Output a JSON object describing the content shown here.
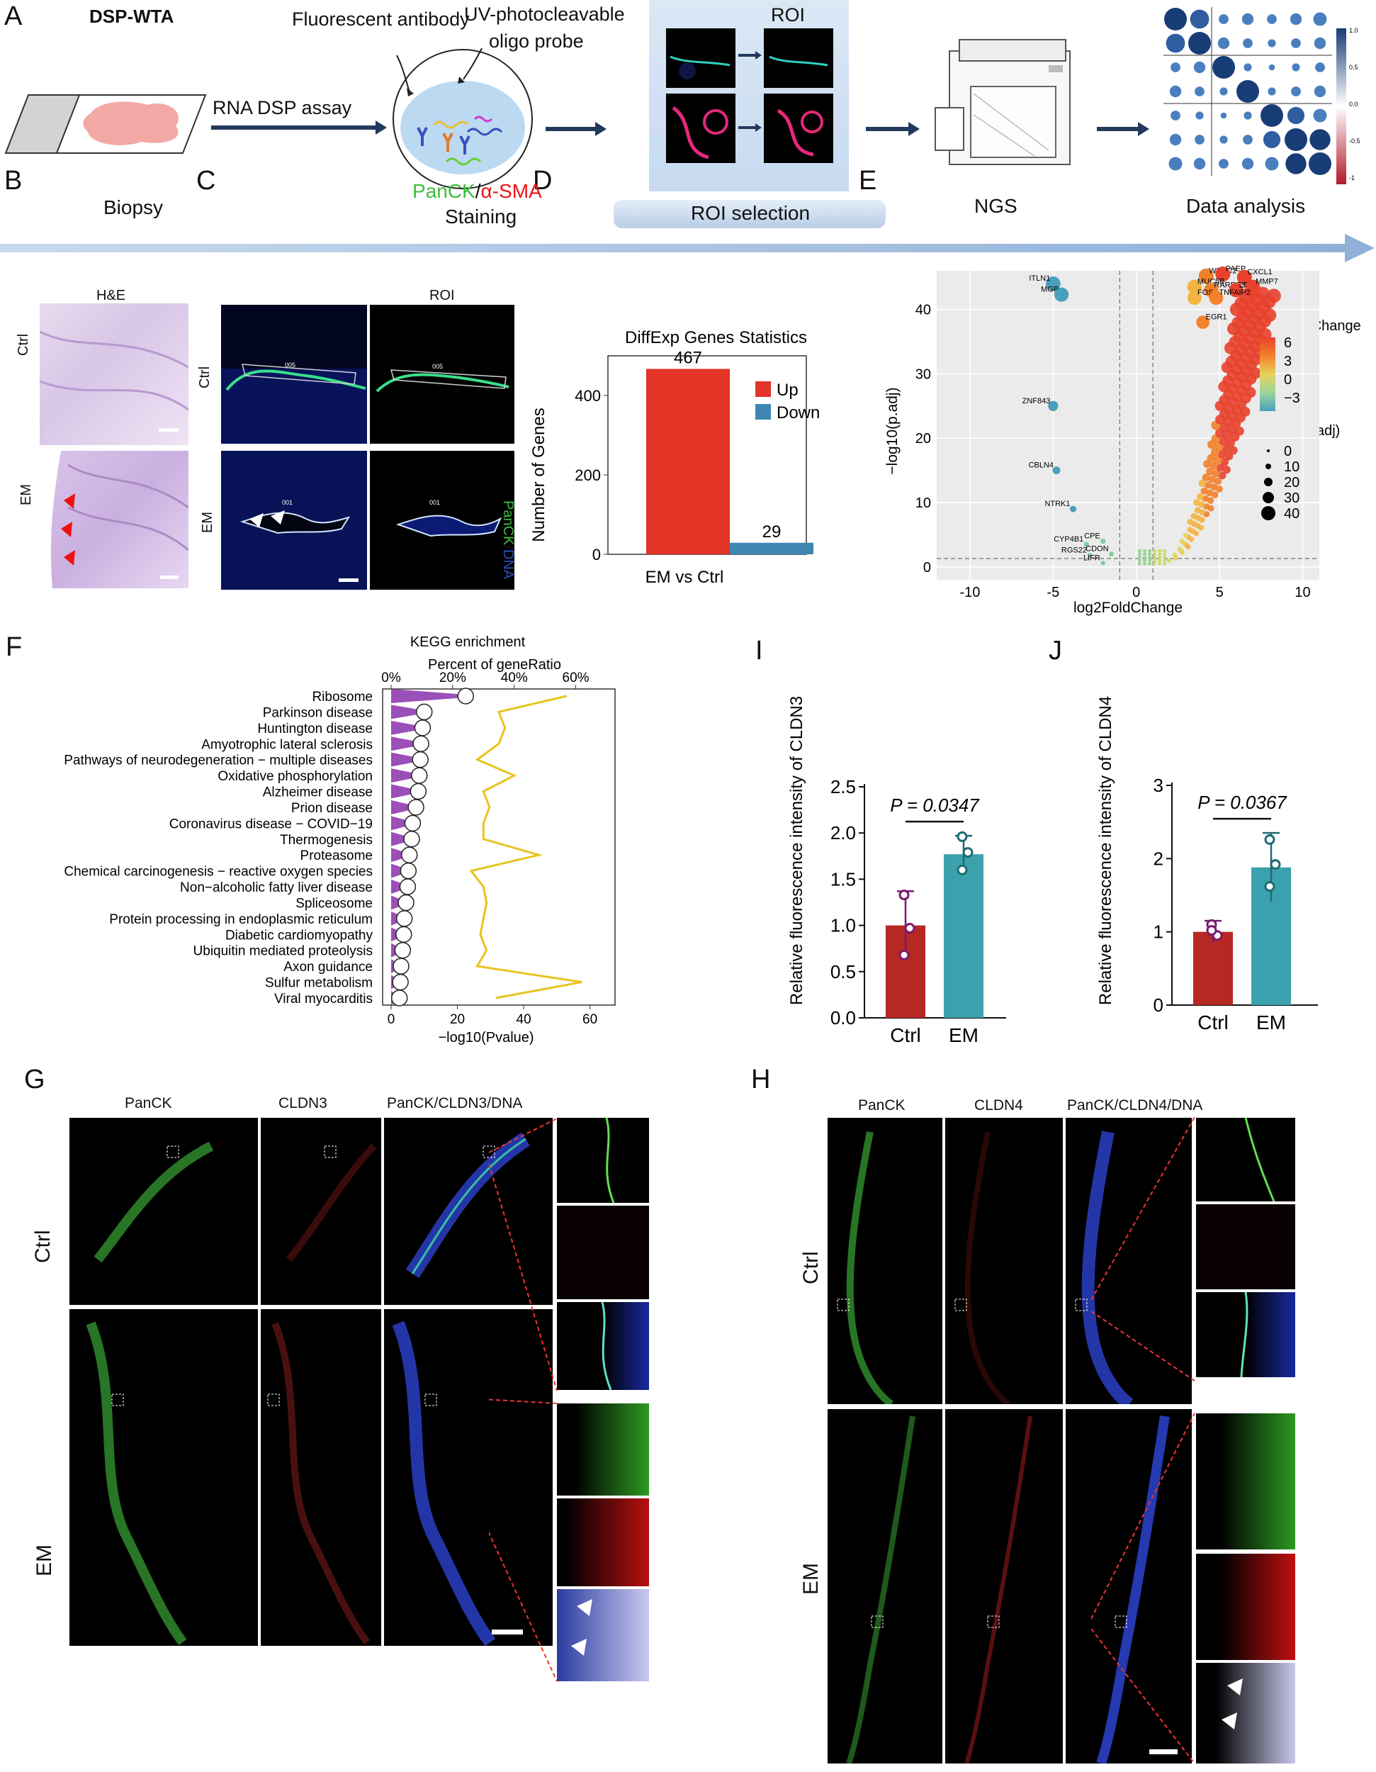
{
  "panels": {
    "A": "A",
    "B": "B",
    "C": "C",
    "D": "D",
    "E": "E",
    "F": "F",
    "G": "G",
    "H": "H",
    "I": "I",
    "J": "J"
  },
  "workflow": {
    "title": "DSP-WTA",
    "fluorescent_antibody": "Fluorescent antibody",
    "uv_probe_line1": "UV-photocleavable",
    "uv_probe_line2": "oligo probe",
    "rna_dsp_assay": "RNA DSP assay",
    "biopsy": "Biopsy",
    "staining_panck": "PanCK",
    "staining_sep": "/",
    "staining_asma": "α-SMA",
    "staining": "Staining",
    "roi": "ROI",
    "roi_selection": "ROI selection",
    "ngs": "NGS",
    "data_analysis": "Data analysis",
    "heatmap_legend_ticks": [
      "1.0",
      "0.5",
      "0.0",
      "-0.5",
      "-1"
    ]
  },
  "panel_b": {
    "title": "H&E",
    "row_ctrl": "Ctrl",
    "row_em": "EM"
  },
  "panel_c": {
    "roi_title": "ROI",
    "row_ctrl": "Ctrl",
    "row_em": "EM",
    "side_label_panck": "PanCK",
    "side_label_sep": "/",
    "side_label_dna": "DNA",
    "roi_ctrl_id": "005",
    "roi_em_id": "001"
  },
  "chart_d": {
    "type": "bar",
    "title": "DiffExp Genes Statistics",
    "ylabel": "Number of Genes",
    "xlabel": "EM vs Ctrl",
    "ylim": [
      0,
      500
    ],
    "yticks": [
      0,
      200,
      400
    ],
    "series": [
      {
        "name": "Up",
        "values": [
          467
        ],
        "color": "#e23427"
      },
      {
        "name": "Down",
        "values": [
          29
        ],
        "color": "#3f86b2"
      }
    ],
    "data_labels": [
      "467",
      "29"
    ]
  },
  "chart_e": {
    "type": "scatter",
    "xlabel": "log2FoldChange",
    "ylabel": "−log10(p.adj)",
    "xlim": [
      -12,
      11
    ],
    "ylim": [
      -2,
      46
    ],
    "xticks": [
      -10,
      -5,
      0,
      5,
      10
    ],
    "yticks": [
      0,
      10,
      20,
      30,
      40
    ],
    "legend_color_title": "log2FoldChange",
    "legend_color_ticks": [
      "6",
      "3",
      "0",
      "−3"
    ],
    "legend_size_title": "−log10(p.adj)",
    "legend_size_ticks": [
      "0",
      "10",
      "20",
      "30",
      "40"
    ],
    "labeled_points": [
      {
        "gene": "ITLN1",
        "x": -5.0,
        "y": 44.0
      },
      {
        "gene": "MGP",
        "x": -4.5,
        "y": 42.3
      },
      {
        "gene": "ZNF843",
        "x": -5.0,
        "y": 25.0
      },
      {
        "gene": "CBLN4",
        "x": -4.8,
        "y": 15.0
      },
      {
        "gene": "NTRK1",
        "x": -3.8,
        "y": 9.0
      },
      {
        "gene": "CYP4B1",
        "x": -3.0,
        "y": 3.5
      },
      {
        "gene": "CPE",
        "x": -2.0,
        "y": 4.0
      },
      {
        "gene": "RGS22",
        "x": -2.8,
        "y": 1.8
      },
      {
        "gene": "CDON",
        "x": -1.5,
        "y": 2.0
      },
      {
        "gene": "LIFR",
        "x": -2.0,
        "y": 0.6
      },
      {
        "gene": "WFDC2",
        "x": 4.2,
        "y": 45.2
      },
      {
        "gene": "PAEP",
        "x": 5.2,
        "y": 45.5
      },
      {
        "gene": "CXCL1",
        "x": 6.5,
        "y": 45.0
      },
      {
        "gene": "MUC5B",
        "x": 3.5,
        "y": 43.5
      },
      {
        "gene": "RARRES1",
        "x": 4.5,
        "y": 43.0
      },
      {
        "gene": "LCN2",
        "x": 6.0,
        "y": 43.0
      },
      {
        "gene": "MMP7",
        "x": 7.0,
        "y": 43.5
      },
      {
        "gene": "FOS",
        "x": 3.5,
        "y": 41.8
      },
      {
        "gene": "TNFAIP2",
        "x": 4.8,
        "y": 41.8
      },
      {
        "gene": "EGR1",
        "x": 4.0,
        "y": 38.0
      }
    ]
  },
  "chart_f": {
    "type": "bar",
    "title": "KEGG enrichment",
    "top_axis_title": "Percent of geneRatio",
    "top_ticks": [
      "0%",
      "20%",
      "40%",
      "60%"
    ],
    "xlabel": "−log10(Pvalue)",
    "bottom_ticks": [
      0,
      20,
      40,
      60
    ],
    "categories": [
      "Ribosome",
      "Parkinson disease",
      "Huntington disease",
      "Amyotrophic lateral sclerosis",
      "Pathways of neurodegeneration − multiple diseases",
      "Oxidative phosphorylation",
      "Alzheimer disease",
      "Prion disease",
      "Coronavirus disease − COVID−19",
      "Thermogenesis",
      "Proteasome",
      "Chemical carcinogenesis − reactive oxygen species",
      "Non−alcoholic fatty liver disease",
      "Spliceosome",
      "Protein processing in endoplasmic reticulum",
      "Diabetic cardiomyopathy",
      "Ubiquitin mediated proteolysis",
      "Axon guidance",
      "Sulfur metabolism",
      "Viral myocarditis"
    ],
    "neglog10_pvalue": [
      22.5,
      10,
      9.5,
      9,
      8.8,
      8.5,
      8.2,
      7.5,
      6.5,
      6.2,
      5.5,
      5.2,
      5.0,
      4.5,
      4.0,
      3.8,
      3.5,
      3.0,
      2.8,
      2.5
    ],
    "gene_ratio_percent": [
      57,
      35,
      37,
      35,
      28,
      40,
      30,
      32,
      30,
      30,
      48,
      26,
      30,
      31,
      30,
      29,
      31,
      28,
      62,
      34
    ]
  },
  "chart_i": {
    "type": "bar",
    "ylabel": "Relative fluorescence intensity of CLDN3",
    "categories": [
      "Ctrl",
      "EM"
    ],
    "values": [
      1.0,
      1.77
    ],
    "error": [
      0.37,
      0.2
    ],
    "points": [
      [
        1.33,
        0.97,
        0.68
      ],
      [
        1.96,
        1.79,
        1.6
      ]
    ],
    "ylim": [
      0,
      2.5
    ],
    "yticks": [
      "0.0",
      "0.5",
      "1.0",
      "1.5",
      "2.0",
      "2.5"
    ],
    "pvalue": "P = 0.0347",
    "colors": [
      "#b82823",
      "#3ba1ac"
    ]
  },
  "chart_j": {
    "type": "bar",
    "ylabel": "Relative fluorescence intensity of CLDN4",
    "categories": [
      "Ctrl",
      "EM"
    ],
    "values": [
      1.0,
      1.88
    ],
    "error": [
      0.15,
      0.47
    ],
    "points": [
      [
        1.1,
        0.95,
        1.02
      ],
      [
        2.26,
        1.92,
        1.62
      ]
    ],
    "ylim": [
      0,
      3
    ],
    "yticks": [
      "0",
      "1",
      "2",
      "3"
    ],
    "pvalue": "P = 0.0367",
    "colors": [
      "#b82823",
      "#3ba1ac"
    ]
  },
  "panel_g": {
    "col1": "PanCK",
    "col2": "CLDN3",
    "col3": "PanCK/CLDN3/DNA",
    "row_ctrl": "Ctrl",
    "row_em": "EM"
  },
  "panel_h": {
    "col1": "PanCK",
    "col2": "CLDN4",
    "col3": "PanCK/CLDN4/DNA",
    "row_ctrl": "Ctrl",
    "row_em": "EM"
  }
}
